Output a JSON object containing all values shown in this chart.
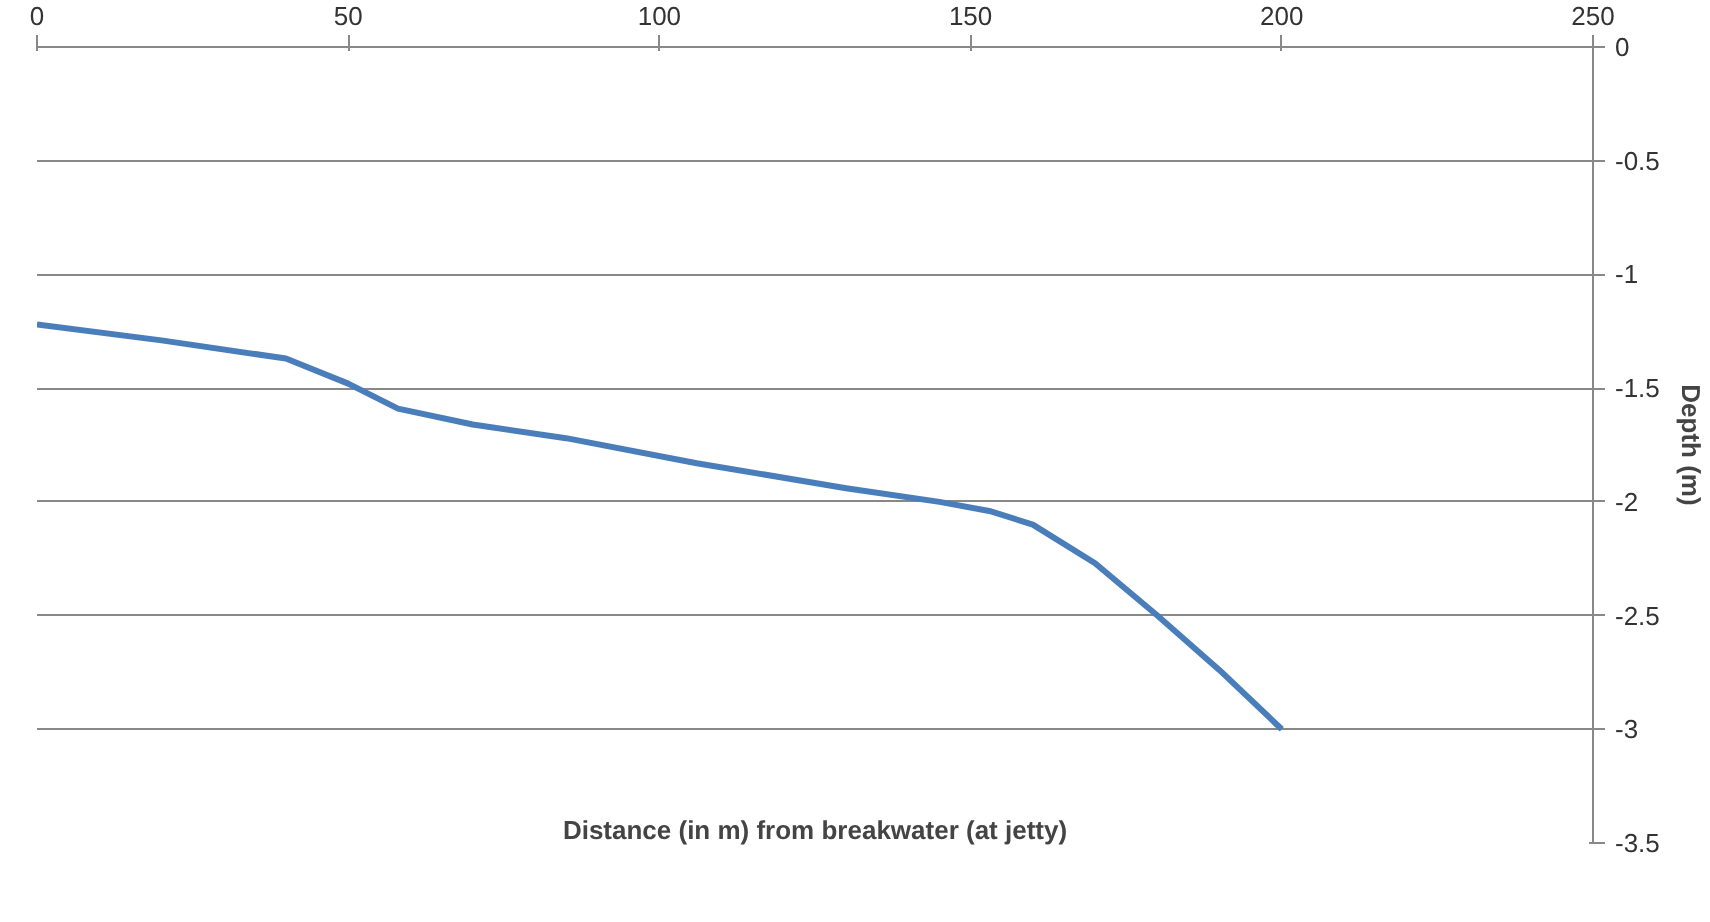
{
  "chart_data": {
    "type": "line",
    "xlabel": "Distance (in m) from breakwater (at jetty)",
    "ylabel": "Depth (m)",
    "x": [
      0,
      20,
      40,
      50,
      58,
      70,
      85,
      106,
      130,
      145,
      153,
      160,
      170,
      180,
      190,
      200
    ],
    "series": [
      {
        "color": "#4a7ebb",
        "values": [
          -1.22,
          -1.29,
          -1.37,
          -1.48,
          -1.59,
          -1.66,
          -1.72,
          -1.83,
          -1.94,
          -2.0,
          -2.04,
          -2.1,
          -2.27,
          -2.5,
          -2.74,
          -3.0
        ]
      }
    ],
    "xlim": [
      0,
      250
    ],
    "xticks": [
      0,
      50,
      100,
      150,
      200,
      250
    ],
    "ylim": [
      -3.5,
      0
    ],
    "yticks": [
      0,
      -0.5,
      -1,
      -1.5,
      -2,
      -2.5,
      -3,
      -3.5
    ],
    "grid": "y",
    "marker": "none",
    "line_style": "solid"
  }
}
